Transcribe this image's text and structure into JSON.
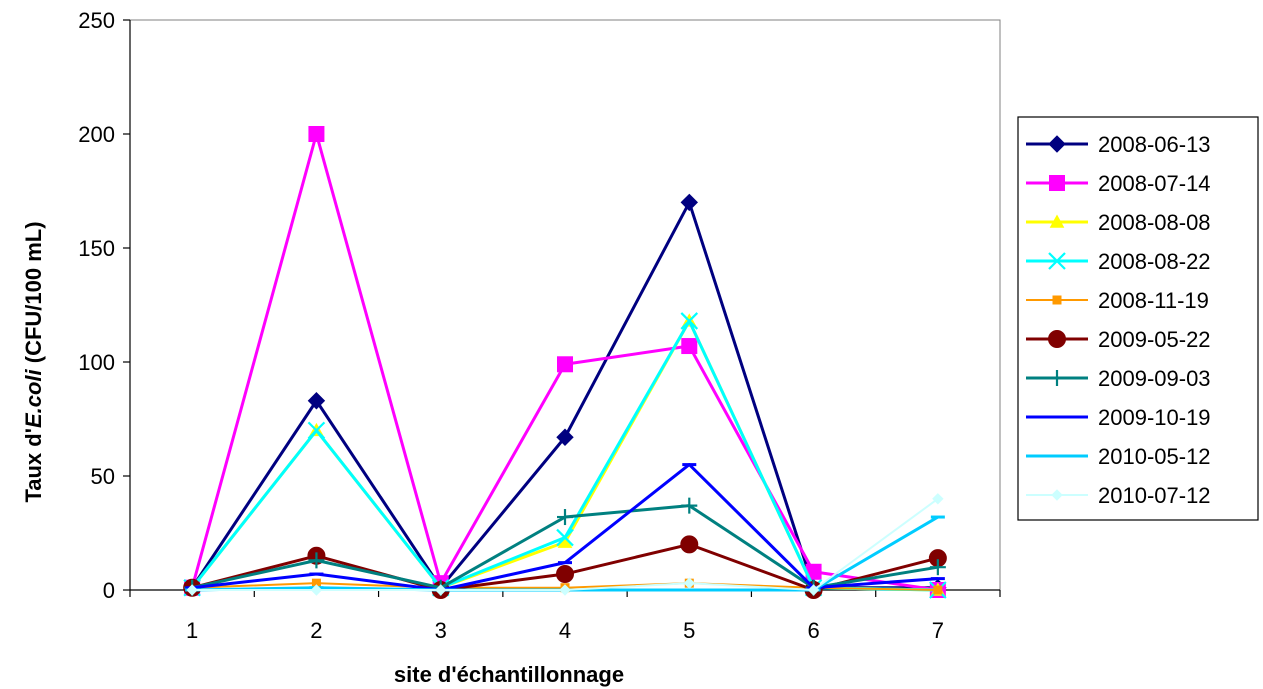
{
  "chart_data": {
    "type": "line",
    "title": "",
    "xlabel": "site d'échantillonnage",
    "ylabel_parts": [
      "Taux d'",
      "E.coli",
      " (CFU/100 mL)"
    ],
    "x": [
      1,
      2,
      3,
      4,
      5,
      6,
      7
    ],
    "x_tick_labels": [
      "1",
      "2",
      "3",
      "4",
      "5",
      "6",
      "7"
    ],
    "ylim": [
      0,
      250
    ],
    "y_ticks": [
      "0",
      "50",
      "100",
      "150",
      "200",
      "250"
    ],
    "grid": false,
    "legend_position": "right",
    "series": [
      {
        "name": "2008-06-13",
        "color": "#000080",
        "marker": "diamond",
        "values": [
          1,
          83,
          1,
          67,
          170,
          1,
          1
        ]
      },
      {
        "name": "2008-07-14",
        "color": "#ff00ff",
        "marker": "square",
        "values": [
          1,
          200,
          3,
          99,
          107,
          8,
          0
        ]
      },
      {
        "name": "2008-08-08",
        "color": "#ffff00",
        "marker": "triangle",
        "values": [
          1,
          70,
          1,
          21,
          118,
          1,
          0
        ]
      },
      {
        "name": "2008-08-22",
        "color": "#00ffff",
        "marker": "x",
        "values": [
          1,
          70,
          1,
          23,
          118,
          1,
          0
        ]
      },
      {
        "name": "2008-11-19",
        "color": "#ff9900",
        "marker": "small-square",
        "values": [
          1,
          3,
          1,
          1,
          3,
          1,
          0
        ]
      },
      {
        "name": "2009-05-22",
        "color": "#800000",
        "marker": "circle",
        "values": [
          1,
          15,
          0,
          7,
          20,
          0,
          14
        ]
      },
      {
        "name": "2009-09-03",
        "color": "#008080",
        "marker": "plus",
        "values": [
          1,
          13,
          1,
          32,
          37,
          1,
          10
        ]
      },
      {
        "name": "2009-10-19",
        "color": "#0000ff",
        "marker": "dash",
        "values": [
          1,
          7,
          0,
          12,
          55,
          1,
          5
        ]
      },
      {
        "name": "2010-05-12",
        "color": "#00ccff",
        "marker": "dash",
        "values": [
          0,
          1,
          0,
          0,
          0,
          0,
          32
        ]
      },
      {
        "name": "2010-07-12",
        "color": "#ccffff",
        "marker": "small-diamond",
        "values": [
          0,
          0,
          0,
          0,
          3,
          0,
          40
        ]
      }
    ]
  }
}
